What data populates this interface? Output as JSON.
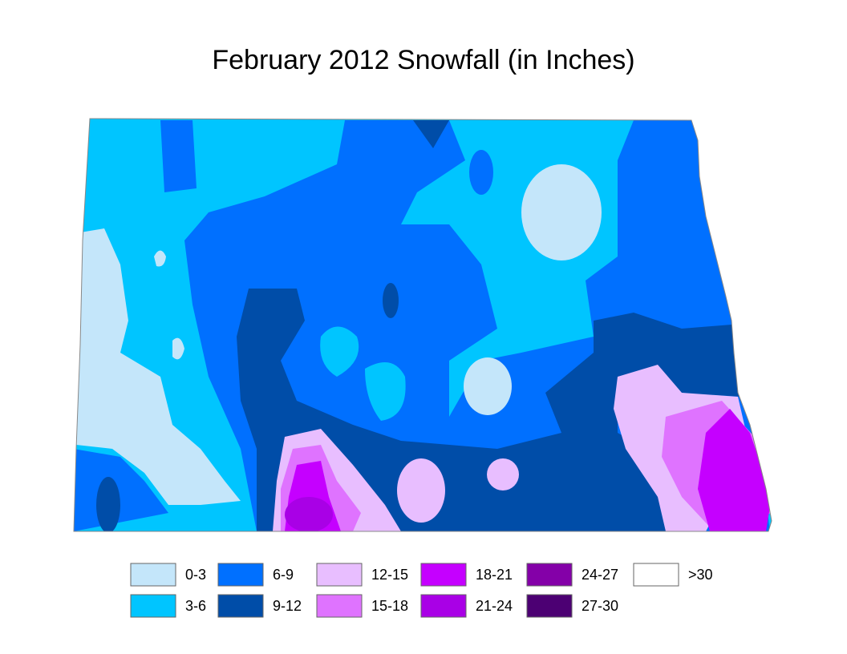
{
  "title": "February 2012 Snowfall (in Inches)",
  "legend": [
    {
      "label": "0-3",
      "color": "#c4e6fa"
    },
    {
      "label": "3-6",
      "color": "#00c5ff"
    },
    {
      "label": "6-9",
      "color": "#0070ff"
    },
    {
      "label": "9-12",
      "color": "#004da8"
    },
    {
      "label": "12-15",
      "color": "#e8beff"
    },
    {
      "label": "15-18",
      "color": "#df73ff"
    },
    {
      "label": "18-21",
      "color": "#c500ff"
    },
    {
      "label": "21-24",
      "color": "#a900e6"
    },
    {
      "label": "24-27",
      "color": "#8400a8"
    },
    {
      "label": "27-30",
      "color": "#4c0073"
    },
    {
      "label": ">30",
      "color": "#ffffff"
    }
  ]
}
